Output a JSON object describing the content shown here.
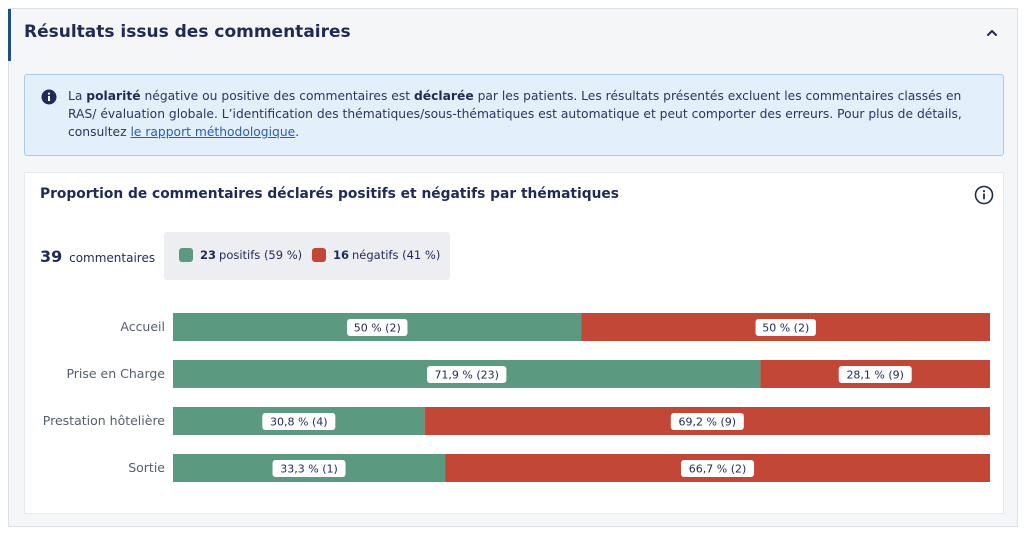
{
  "panel": {
    "title": "Résultats issus des commentaires"
  },
  "info": {
    "text_1": "La ",
    "bold_1": "polarité",
    "text_2": " négative ou positive des commentaires est ",
    "bold_2": "déclarée",
    "text_3": " par les patients. Les résultats présentés excluent les commentaires classés en RAS/ évaluation globale. L’identification des thématiques/sous-thématiques est automatique et peut comporter des erreurs. Pour plus de détails, consultez ",
    "link": "le rapport méthodologique",
    "text_4": "."
  },
  "card": {
    "title": "Proportion de commentaires déclarés positifs et négatifs par thématiques",
    "total_count": "39",
    "total_label": "commentaires",
    "legend": {
      "positive": {
        "count": "23",
        "label": "positifs (59 %)"
      },
      "negative": {
        "count": "16",
        "label": "négatifs (41 %)"
      }
    }
  },
  "colors": {
    "positive": "#5b9a80",
    "negative": "#c24737",
    "accent": "#1f4e8c"
  },
  "icons": {
    "collapse": "chevron-up-icon",
    "info_banner": "info-filled-icon",
    "card_info": "info-outline-icon"
  },
  "chart_data": {
    "type": "bar",
    "orientation": "horizontal",
    "stacked": true,
    "normalized": true,
    "categories": [
      "Accueil",
      "Prise en Charge",
      "Prestation hôtelière",
      "Sortie"
    ],
    "series": [
      {
        "name": "positifs",
        "values": [
          50,
          71.9,
          30.8,
          33.3
        ],
        "counts": [
          2,
          23,
          4,
          1
        ],
        "labels": [
          "50 % (2)",
          "71,9 % (23)",
          "30,8 % (4)",
          "33,3 % (1)"
        ]
      },
      {
        "name": "négatifs",
        "values": [
          50,
          28.1,
          69.2,
          66.7
        ],
        "counts": [
          2,
          9,
          9,
          2
        ],
        "labels": [
          "50 % (2)",
          "28,1 % (9)",
          "69,2 % (9)",
          "66,7 % (2)"
        ]
      }
    ],
    "xlim": [
      0,
      100
    ],
    "grid": false
  }
}
